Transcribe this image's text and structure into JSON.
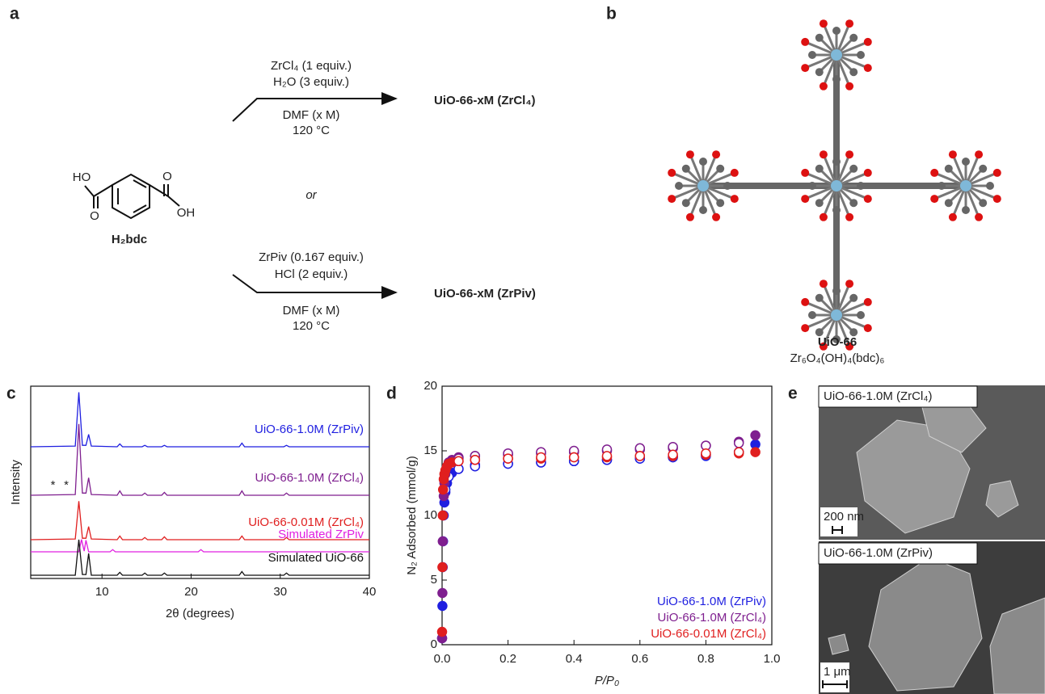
{
  "panel_labels": [
    "a",
    "b",
    "c",
    "d",
    "e"
  ],
  "scheme": {
    "route_1": {
      "reagents": [
        "ZrCl₄ (1 equiv.)",
        "H₂O (3 equiv.)"
      ],
      "conditions": [
        "DMF (x M)",
        "120 °C"
      ],
      "product": "UiO-66-xM (ZrCl₄)"
    },
    "or": "or",
    "route_2": {
      "reagents": [
        "ZrPiv (0.167 equiv.)",
        "HCl (2 equiv.)"
      ],
      "conditions": [
        "DMF (x M)",
        "120 °C"
      ],
      "product": "UiO-66-xM (ZrPiv)"
    },
    "linker": {
      "atoms": [
        "HO",
        "O",
        "O",
        "OH"
      ],
      "name": "H₂bdc"
    }
  },
  "structure": {
    "name": "UiO-66",
    "formula": "Zr₆O₄(OH)₄(bdc)₆"
  },
  "micrographs": [
    {
      "label": "UiO-66-1.0M (ZrCl₄)",
      "scale_bar": "200 nm"
    },
    {
      "label": "UiO-66-1.0M (ZrPiv)",
      "scale_bar": "1 μm"
    }
  ],
  "chart_data": [
    {
      "type": "line",
      "xlabel": "2θ (degrees)",
      "ylabel": "Intensity",
      "xlim": [
        2,
        40
      ],
      "xticks": [
        10,
        20,
        30,
        40
      ],
      "ylim": [
        0,
        100
      ],
      "annotations": [
        {
          "text": "*",
          "x": 4.5
        },
        {
          "text": "*",
          "x": 6.0
        }
      ],
      "series": [
        {
          "name": "UiO-66-1.0M (ZrPiv)",
          "color": "#1f1fe0",
          "x": [
            2,
            7.0,
            7.4,
            7.8,
            8.2,
            8.5,
            8.8,
            11.7,
            12.0,
            12.3,
            14.5,
            14.8,
            15.1,
            16.7,
            17.0,
            17.3,
            25.4,
            25.7,
            26.0,
            30.4,
            30.7,
            31.0,
            40
          ],
          "values": [
            0,
            1,
            75,
            2,
            2,
            17,
            1,
            0,
            4,
            0,
            0,
            2,
            0,
            0,
            2,
            0,
            0,
            5,
            0,
            0,
            2,
            0,
            0
          ]
        },
        {
          "name": "UiO-66-1.0M (ZrCl₄)",
          "color": "#7f1f8f",
          "x": [
            2,
            7.0,
            7.4,
            7.8,
            8.2,
            8.5,
            8.8,
            11.7,
            12.0,
            12.3,
            14.5,
            14.8,
            15.1,
            16.7,
            17.0,
            17.3,
            25.4,
            25.7,
            26.0,
            30.4,
            30.7,
            31.0,
            40
          ],
          "values": [
            0,
            1,
            98,
            3,
            3,
            24,
            1,
            0,
            6,
            0,
            0,
            3,
            0,
            0,
            4,
            0,
            0,
            6,
            0,
            0,
            3,
            0,
            0
          ]
        },
        {
          "name": "UiO-66-0.01M (ZrCl₄)",
          "color": "#e01f1f",
          "x": [
            2,
            7.0,
            7.4,
            7.8,
            8.2,
            8.5,
            8.8,
            11.7,
            12.0,
            12.3,
            14.5,
            14.8,
            15.1,
            16.7,
            17.0,
            17.3,
            25.4,
            25.7,
            26.0,
            30.4,
            30.7,
            31.0,
            40
          ],
          "values": [
            0,
            1,
            53,
            2,
            2,
            18,
            1,
            0,
            5,
            0,
            0,
            3,
            0,
            0,
            4,
            0,
            0,
            5,
            0,
            0,
            3,
            0,
            0
          ]
        },
        {
          "name": "Simulated ZrPiv",
          "color": "#e020e0",
          "x": [
            2,
            7.4,
            7.7,
            8.0,
            8.2,
            8.5,
            10.9,
            11.2,
            11.5,
            20.8,
            21.1,
            21.4,
            40
          ],
          "values": [
            0,
            0,
            17,
            1,
            16,
            0,
            0,
            3,
            0,
            0,
            3,
            0,
            0
          ]
        },
        {
          "name": "Simulated UiO-66",
          "color": "#111111",
          "x": [
            2,
            7.0,
            7.4,
            7.8,
            8.2,
            8.5,
            8.8,
            11.7,
            12.0,
            12.3,
            14.5,
            14.8,
            15.1,
            16.7,
            17.0,
            17.3,
            25.4,
            25.7,
            26.0,
            30.4,
            30.7,
            31.0,
            40
          ],
          "values": [
            0,
            0,
            49,
            1,
            1,
            30,
            0,
            0,
            4,
            0,
            0,
            3,
            0,
            0,
            3,
            0,
            0,
            5,
            0,
            0,
            3,
            0,
            0
          ]
        }
      ]
    },
    {
      "type": "scatter",
      "xlabel": "P/P₀",
      "ylabel": "N₂ Adsorbed (mmol/g)",
      "xlim": [
        0,
        1
      ],
      "xticks": [
        {
          "value": 0,
          "label": "0.0"
        },
        0.2,
        0.4,
        0.6,
        0.8,
        {
          "value": 1,
          "label": "1.0"
        }
      ],
      "ylim": [
        0,
        20
      ],
      "yticks": [
        0,
        5,
        10,
        15,
        20
      ],
      "legend": "lower right",
      "series": [
        {
          "name": "UiO-66-1.0M (ZrPiv)",
          "color": "#1f1fe0",
          "adsorption": {
            "x": [
              0,
              0.001,
              0.002,
              0.003,
              0.005,
              0.007,
              0.01,
              0.015,
              0.02,
              0.03,
              0.05,
              0.1,
              0.2,
              0.3,
              0.4,
              0.5,
              0.6,
              0.7,
              0.8,
              0.9,
              0.95
            ],
            "values": [
              0.5,
              3,
              6,
              8,
              10,
              11,
              11.8,
              12.5,
              13,
              13.3,
              13.6,
              13.9,
              14.0,
              14.1,
              14.2,
              14.3,
              14.4,
              14.5,
              14.6,
              14.9,
              15.5
            ]
          },
          "desorption": {
            "x": [
              0.9,
              0.8,
              0.7,
              0.6,
              0.5,
              0.4,
              0.3,
              0.2,
              0.1,
              0.05,
              0.02,
              0.01
            ],
            "values": [
              14.9,
              14.7,
              14.5,
              14.4,
              14.3,
              14.2,
              14.1,
              14.0,
              13.8,
              13.6,
              13.0,
              12.0
            ]
          }
        },
        {
          "name": "UiO-66-1.0M (ZrCl₄)",
          "color": "#7f1f8f",
          "adsorption": {
            "x": [
              0,
              0.001,
              0.002,
              0.003,
              0.005,
              0.007,
              0.01,
              0.015,
              0.02,
              0.03,
              0.05,
              0.1,
              0.2,
              0.3,
              0.4,
              0.5,
              0.6,
              0.7,
              0.8,
              0.9,
              0.95
            ],
            "values": [
              0.5,
              4,
              8,
              10,
              11.5,
              12.5,
              13.2,
              13.8,
              14.1,
              14.3,
              14.5,
              14.6,
              14.7,
              14.8,
              14.9,
              15.0,
              15.1,
              15.2,
              15.4,
              15.7,
              16.2
            ]
          },
          "desorption": {
            "x": [
              0.9,
              0.8,
              0.7,
              0.6,
              0.5,
              0.4,
              0.3,
              0.2,
              0.1,
              0.05
            ],
            "values": [
              15.6,
              15.4,
              15.3,
              15.2,
              15.1,
              15.0,
              14.9,
              14.8,
              14.6,
              14.4
            ]
          }
        },
        {
          "name": "UiO-66-0.01M (ZrCl₄)",
          "color": "#e01f1f",
          "adsorption": {
            "x": [
              0,
              0.001,
              0.002,
              0.003,
              0.005,
              0.007,
              0.01,
              0.015,
              0.02,
              0.03,
              0.05,
              0.1,
              0.2,
              0.3,
              0.4,
              0.5,
              0.6,
              0.7,
              0.8,
              0.9,
              0.95
            ],
            "values": [
              1,
              6,
              10,
              12,
              12.8,
              13.2,
              13.5,
              13.8,
              14.0,
              14.1,
              14.2,
              14.3,
              14.4,
              14.4,
              14.5,
              14.5,
              14.6,
              14.6,
              14.7,
              14.8,
              14.9
            ]
          },
          "desorption": {
            "x": [
              0.9,
              0.8,
              0.7,
              0.6,
              0.5,
              0.4,
              0.3,
              0.2,
              0.1,
              0.05
            ],
            "values": [
              14.9,
              14.8,
              14.7,
              14.6,
              14.6,
              14.5,
              14.5,
              14.4,
              14.3,
              14.2
            ]
          }
        }
      ]
    }
  ]
}
